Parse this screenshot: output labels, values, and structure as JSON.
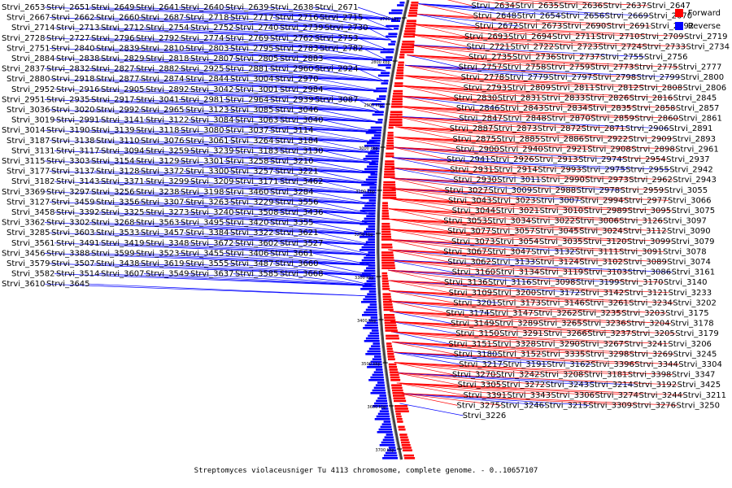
{
  "caption": "Streptomyces violaceusniger Tu 4113 chromosome, complete genome. - 0..10657107",
  "legend": [
    {
      "label": "Forward",
      "color": "#ff0000"
    },
    {
      "label": "Reverse",
      "color": "#0000ff"
    }
  ],
  "colors": {
    "forward": "#ff0000",
    "reverse": "#0000ff",
    "backbone": "#555555"
  },
  "ticks": [
    "2700 kbp",
    "2800 kbp",
    "2900 kbp",
    "3000 kbp",
    "3100 kbp",
    "3200 kbp",
    "3300 kbp",
    "3400 kbp",
    "3500 kbp",
    "3600 kbp",
    "3700 kbp"
  ],
  "genes_reverse": [
    "Strvi_2653",
    "Strvi_2651",
    "Strvi_2649",
    "Strvi_2641",
    "Strvi_2640",
    "Strvi_2639",
    "Strvi_2638",
    "Strvi_2671",
    "Strvi_2667",
    "Strvi_2662",
    "Strvi_2660",
    "Strvi_2687",
    "Strvi_2718",
    "Strvi_2717",
    "Strvi_2716",
    "Strvi_2715",
    "Strvi_2714",
    "Strvi_2713",
    "Strvi_2712",
    "Strvi_2754",
    "Strvi_2752",
    "Strvi_2740",
    "Strvi_2739",
    "Strvi_2730",
    "Strvi_2728",
    "Strvi_2727",
    "Strvi_2796",
    "Strvi_2792",
    "Strvi_2774",
    "Strvi_2769",
    "Strvi_2762",
    "Strvi_2753",
    "Strvi_2751",
    "Strvi_2840",
    "Strvi_2839",
    "Strvi_2810",
    "Strvi_2803",
    "Strvi_2795",
    "Strvi_2783",
    "Strvi_2782",
    "Strvi_2884",
    "Strvi_2838",
    "Strvi_2829",
    "Strvi_2818",
    "Strvi_2807",
    "Strvi_2805",
    "Strvi_2883",
    "Strvi_2837",
    "Strvi_2832",
    "Strvi_2827",
    "Strvi_2882",
    "Strvi_2925",
    "Strvi_2881",
    "Strvi_2960",
    "Strvi_2924",
    "Strvi_2880",
    "Strvi_2918",
    "Strvi_2877",
    "Strvi_2874",
    "Strvi_2844",
    "Strvi_3004",
    "Strvi_2970",
    "Strvi_2952",
    "Strvi_2916",
    "Strvi_2905",
    "Strvi_2892",
    "Strvi_3042",
    "Strvi_3001",
    "Strvi_2984",
    "Strvi_2951",
    "Strvi_2935",
    "Strvi_2917",
    "Strvi_3041",
    "Strvi_2981",
    "Strvi_2964",
    "Strvi_2939",
    "Strvi_3087",
    "Strvi_3036",
    "Strvi_3020",
    "Strvi_2992",
    "Strvi_2965",
    "Strvi_3123",
    "Strvi_3085",
    "Strvi_3046",
    "Strvi_3019",
    "Strvi_2991",
    "Strvi_3141",
    "Strvi_3122",
    "Strvi_3084",
    "Strvi_3063",
    "Strvi_3040",
    "Strvi_3014",
    "Strvi_3190",
    "Strvi_3139",
    "Strvi_3118",
    "Strvi_3080",
    "Strvi_3037",
    "Strvi_3114",
    "Strvi_3187",
    "Strvi_3138",
    "Strvi_3110",
    "Strvi_3076",
    "Strvi_3061",
    "Strvi_3264",
    "Strvi_3184",
    "Strvi_3131",
    "Strvi_3117",
    "Strvi_3094",
    "Strvi_3259",
    "Strvi_3239",
    "Strvi_3183",
    "Strvi_3130",
    "Strvi_3115",
    "Strvi_3303",
    "Strvi_3154",
    "Strvi_3129",
    "Strvi_3301",
    "Strvi_3258",
    "Strvi_3210",
    "Strvi_3177",
    "Strvi_3137",
    "Strvi_3128",
    "Strvi_3372",
    "Strvi_3300",
    "Strvi_3257",
    "Strvi_3221",
    "Strvi_3182",
    "Strvi_3143",
    "Strvi_3371",
    "Strvi_3299",
    "Strvi_3209",
    "Strvi_3171",
    "Strvi_3462",
    "Strvi_3369",
    "Strvi_3297",
    "Strvi_3256",
    "Strvi_3238",
    "Strvi_3198",
    "Strvi_3460",
    "Strvi_3284",
    "Strvi_3127",
    "Strvi_3459",
    "Strvi_3356",
    "Strvi_3307",
    "Strvi_3263",
    "Strvi_3229",
    "Strvi_3556",
    "Strvi_3458",
    "Strvi_3392",
    "Strvi_3325",
    "Strvi_3273",
    "Strvi_3240",
    "Strvi_3508",
    "Strvi_3436",
    "Strvi_3362",
    "Strvi_3302",
    "Strvi_3268",
    "Strvi_3563",
    "Strvi_3495",
    "Strvi_3420",
    "Strvi_3355",
    "Strvi_3285",
    "Strvi_3603",
    "Strvi_3533",
    "Strvi_3457",
    "Strvi_3384",
    "Strvi_3322",
    "Strvi_3621",
    "Strvi_3561",
    "Strvi_3491",
    "Strvi_3419",
    "Strvi_3348",
    "Strvi_3672",
    "Strvi_3602",
    "Strvi_3527",
    "Strvi_3456",
    "Strvi_3388",
    "Strvi_3599",
    "Strvi_3523",
    "Strvi_3455",
    "Strvi_3406",
    "Strvi_3661",
    "Strvi_3579",
    "Strvi_3507",
    "Strvi_3438",
    "Strvi_3619",
    "Strvi_3555",
    "Strvi_3487",
    "Strvi_3660",
    "Strvi_3582",
    "Strvi_3514",
    "Strvi_3607",
    "Strvi_3549",
    "Strvi_3637",
    "Strvi_3585",
    "Strvi_3668",
    "Strvi_3610",
    "Strvi_3645"
  ],
  "genes_mixed_right": [
    {
      "t": "Strvi_2634",
      "s": "f"
    },
    {
      "t": "Strvi_2635",
      "s": "f"
    },
    {
      "t": "Strvi_2636",
      "s": "f"
    },
    {
      "t": "Strvi_2637",
      "s": "f"
    },
    {
      "t": "Strvi_2647",
      "s": "f"
    },
    {
      "t": "Strvi_2648",
      "s": "f"
    },
    {
      "t": "Strvi_2654",
      "s": "r"
    },
    {
      "t": "Strvi_2656",
      "s": "r"
    },
    {
      "t": "Strvi_2669",
      "s": "r"
    },
    {
      "t": "Strvi_2670",
      "s": "r"
    },
    {
      "t": "Strvi_2672",
      "s": "r"
    },
    {
      "t": "Strvi_2673",
      "s": "r"
    },
    {
      "t": "Strvi_2690",
      "s": "f"
    },
    {
      "t": "Strvi_2691",
      "s": "f"
    },
    {
      "t": "Strvi_2692",
      "s": "f"
    },
    {
      "t": "Strvi_2693",
      "s": "f"
    },
    {
      "t": "Strvi_2694",
      "s": "f"
    },
    {
      "t": "Strvi_2711",
      "s": "f"
    },
    {
      "t": "Strvi_2710",
      "s": "f"
    },
    {
      "t": "Strvi_2709",
      "s": "f"
    },
    {
      "t": "Strvi_2719",
      "s": "f"
    },
    {
      "t": "Strvi_2721",
      "s": "f"
    },
    {
      "t": "Strvi_2722",
      "s": "f"
    },
    {
      "t": "Strvi_2723",
      "s": "f"
    },
    {
      "t": "Strvi_2724",
      "s": "f"
    },
    {
      "t": "Strvi_2733",
      "s": "f"
    },
    {
      "t": "Strvi_2734",
      "s": "f"
    },
    {
      "t": "Strvi_2735",
      "s": "f"
    },
    {
      "t": "Strvi_2736",
      "s": "f"
    },
    {
      "t": "Strvi_2737",
      "s": "f"
    },
    {
      "t": "Strvi_2755",
      "s": "f"
    },
    {
      "t": "Strvi_2756",
      "s": "r"
    },
    {
      "t": "Strvi_2757",
      "s": "r"
    },
    {
      "t": "Strvi_2758",
      "s": "f"
    },
    {
      "t": "Strvi_2759",
      "s": "f"
    },
    {
      "t": "Strvi_2773",
      "s": "f"
    },
    {
      "t": "Strvi_2775",
      "s": "f"
    },
    {
      "t": "Strvi_2777",
      "s": "f"
    },
    {
      "t": "Strvi_2778",
      "s": "f"
    },
    {
      "t": "Strvi_2779",
      "s": "f"
    },
    {
      "t": "Strvi_2797",
      "s": "r"
    },
    {
      "t": "Strvi_2798",
      "s": "r"
    },
    {
      "t": "Strvi_2799",
      "s": "f"
    },
    {
      "t": "Strvi_2800",
      "s": "r"
    },
    {
      "t": "Strvi_2793",
      "s": "f"
    },
    {
      "t": "Strvi_2809",
      "s": "f"
    },
    {
      "t": "Strvi_2811",
      "s": "f"
    },
    {
      "t": "Strvi_2812",
      "s": "f"
    },
    {
      "t": "Strvi_2808",
      "s": "f"
    },
    {
      "t": "Strvi_2806",
      "s": "f"
    },
    {
      "t": "Strvi_2830",
      "s": "f"
    },
    {
      "t": "Strvi_2831",
      "s": "f"
    },
    {
      "t": "Strvi_2833",
      "s": "f"
    },
    {
      "t": "Strvi_2826",
      "s": "f"
    },
    {
      "t": "Strvi_2816",
      "s": "f"
    },
    {
      "t": "Strvi_2845",
      "s": "f"
    },
    {
      "t": "Strvi_2846",
      "s": "f"
    },
    {
      "t": "Strvi_2843",
      "s": "r"
    },
    {
      "t": "Strvi_2834",
      "s": "f"
    },
    {
      "t": "Strvi_2835",
      "s": "f"
    },
    {
      "t": "Strvi_2858",
      "s": "f"
    },
    {
      "t": "Strvi_2857",
      "s": "f"
    },
    {
      "t": "Strvi_2847",
      "s": "f"
    },
    {
      "t": "Strvi_2848",
      "s": "f"
    },
    {
      "t": "Strvi_2870",
      "s": "f"
    },
    {
      "t": "Strvi_2859",
      "s": "f"
    },
    {
      "t": "Strvi_2860",
      "s": "f"
    },
    {
      "t": "Strvi_2861",
      "s": "f"
    },
    {
      "t": "Strvi_2887",
      "s": "f"
    },
    {
      "t": "Strvi_2873",
      "s": "f"
    },
    {
      "t": "Strvi_2872",
      "s": "f"
    },
    {
      "t": "Strvi_2871",
      "s": "f"
    },
    {
      "t": "Strvi_2906",
      "s": "f"
    },
    {
      "t": "Strvi_2891",
      "s": "r"
    },
    {
      "t": "Strvi_2875",
      "s": "f"
    },
    {
      "t": "Strvi_2885",
      "s": "f"
    },
    {
      "t": "Strvi_2886",
      "s": "f"
    },
    {
      "t": "Strvi_2922",
      "s": "f"
    },
    {
      "t": "Strvi_2909",
      "s": "f"
    },
    {
      "t": "Strvi_2893",
      "s": "f"
    },
    {
      "t": "Strvi_2900",
      "s": "f"
    },
    {
      "t": "Strvi_2940",
      "s": "f"
    },
    {
      "t": "Strvi_2921",
      "s": "f"
    },
    {
      "t": "Strvi_2908",
      "s": "f"
    },
    {
      "t": "Strvi_2898",
      "s": "f"
    },
    {
      "t": "Strvi_2961",
      "s": "f"
    },
    {
      "t": "Strvi_2941",
      "s": "f"
    },
    {
      "t": "Strvi_2926",
      "s": "r"
    },
    {
      "t": "Strvi_2913",
      "s": "f"
    },
    {
      "t": "Strvi_2974",
      "s": "f"
    },
    {
      "t": "Strvi_2954",
      "s": "r"
    },
    {
      "t": "Strvi_2937",
      "s": "f"
    },
    {
      "t": "Strvi_2931",
      "s": "r"
    },
    {
      "t": "Strvi_2914",
      "s": "f"
    },
    {
      "t": "Strvi_2993",
      "s": "f"
    },
    {
      "t": "Strvi_2975",
      "s": "f"
    },
    {
      "t": "Strvi_2955",
      "s": "r"
    },
    {
      "t": "Strvi_2942",
      "s": "r"
    },
    {
      "t": "Strvi_2930",
      "s": "r"
    },
    {
      "t": "Strvi_3011",
      "s": "f"
    },
    {
      "t": "Strvi_2990",
      "s": "r"
    },
    {
      "t": "Strvi_2973",
      "s": "f"
    },
    {
      "t": "Strvi_2962",
      "s": "f"
    },
    {
      "t": "Strvi_2943",
      "s": "f"
    },
    {
      "t": "Strvi_3027",
      "s": "f"
    },
    {
      "t": "Strvi_3009",
      "s": "f"
    },
    {
      "t": "Strvi_2988",
      "s": "r"
    },
    {
      "t": "Strvi_2978",
      "s": "f"
    },
    {
      "t": "Strvi_2959",
      "s": "r"
    },
    {
      "t": "Strvi_3055",
      "s": "f"
    },
    {
      "t": "Strvi_3043",
      "s": "f"
    },
    {
      "t": "Strvi_3023",
      "s": "f"
    },
    {
      "t": "Strvi_3007",
      "s": "f"
    },
    {
      "t": "Strvi_2994",
      "s": "r"
    },
    {
      "t": "Strvi_2977",
      "s": "f"
    },
    {
      "t": "Strvi_3066",
      "s": "f"
    },
    {
      "t": "Strvi_3044",
      "s": "f"
    },
    {
      "t": "Strvi_3021",
      "s": "f"
    },
    {
      "t": "Strvi_3010",
      "s": "f"
    },
    {
      "t": "Strvi_2989",
      "s": "f"
    },
    {
      "t": "Strvi_3095",
      "s": "f"
    },
    {
      "t": "Strvi_3075",
      "s": "f"
    },
    {
      "t": "Strvi_3053",
      "s": "f"
    },
    {
      "t": "Strvi_3034",
      "s": "f"
    },
    {
      "t": "Strvi_3022",
      "s": "f"
    },
    {
      "t": "Strvi_3006",
      "s": "f"
    },
    {
      "t": "Strvi_3126",
      "s": "f"
    },
    {
      "t": "Strvi_3097",
      "s": "f"
    },
    {
      "t": "Strvi_3077",
      "s": "f"
    },
    {
      "t": "Strvi_3057",
      "s": "f"
    },
    {
      "t": "Strvi_3045",
      "s": "f"
    },
    {
      "t": "Strvi_3024",
      "s": "f"
    },
    {
      "t": "Strvi_3112",
      "s": "f"
    },
    {
      "t": "Strvi_3090",
      "s": "f"
    },
    {
      "t": "Strvi_3073",
      "s": "f"
    },
    {
      "t": "Strvi_3054",
      "s": "f"
    },
    {
      "t": "Strvi_3035",
      "s": "f"
    },
    {
      "t": "Strvi_3120",
      "s": "f"
    },
    {
      "t": "Strvi_3099",
      "s": "f"
    },
    {
      "t": "Strvi_3079",
      "s": "f"
    },
    {
      "t": "Strvi_3067",
      "s": "f"
    },
    {
      "t": "Strvi_3047",
      "s": "f"
    },
    {
      "t": "Strvi_3132",
      "s": "f"
    },
    {
      "t": "Strvi_3111",
      "s": "r"
    },
    {
      "t": "Strvi_3091",
      "s": "f"
    },
    {
      "t": "Strvi_3078",
      "s": "f"
    },
    {
      "t": "Strvi_3062",
      "s": "f"
    },
    {
      "t": "Strvi_3133",
      "s": "f"
    },
    {
      "t": "Strvi_3124",
      "s": "r"
    },
    {
      "t": "Strvi_3102",
      "s": "f"
    },
    {
      "t": "Strvi_3089",
      "s": "f"
    },
    {
      "t": "Strvi_3074",
      "s": "f"
    },
    {
      "t": "Strvi_3160",
      "s": "r"
    },
    {
      "t": "Strvi_3134",
      "s": "f"
    },
    {
      "t": "Strvi_3119",
      "s": "f"
    },
    {
      "t": "Strvi_3103",
      "s": "f"
    },
    {
      "t": "Strvi_3086",
      "s": "f"
    },
    {
      "t": "Strvi_3161",
      "s": "r"
    },
    {
      "t": "Strvi_3136",
      "s": "f"
    },
    {
      "t": "Strvi_3116",
      "s": "f"
    },
    {
      "t": "Strvi_3098",
      "s": "r"
    },
    {
      "t": "Strvi_3199",
      "s": "f"
    },
    {
      "t": "Strvi_3170",
      "s": "r"
    },
    {
      "t": "Strvi_3140",
      "s": "f"
    },
    {
      "t": "Strvi_3109",
      "s": "f"
    },
    {
      "t": "Strvi_3200",
      "s": "f"
    },
    {
      "t": "Strvi_3172",
      "s": "f"
    },
    {
      "t": "Strvi_3142",
      "s": "r"
    },
    {
      "t": "Strvi_3121",
      "s": "f"
    },
    {
      "t": "Strvi_3233",
      "s": "f"
    },
    {
      "t": "Strvi_3201",
      "s": "f"
    },
    {
      "t": "Strvi_3173",
      "s": "r"
    },
    {
      "t": "Strvi_3146",
      "s": "f"
    },
    {
      "t": "Strvi_3261",
      "s": "f"
    },
    {
      "t": "Strvi_3234",
      "s": "f"
    },
    {
      "t": "Strvi_3202",
      "s": "f"
    },
    {
      "t": "Strvi_3174",
      "s": "f"
    },
    {
      "t": "Strvi_3147",
      "s": "r"
    },
    {
      "t": "Strvi_3262",
      "s": "f"
    },
    {
      "t": "Strvi_3235",
      "s": "f"
    },
    {
      "t": "Strvi_3203",
      "s": "f"
    },
    {
      "t": "Strvi_3175",
      "s": "f"
    },
    {
      "t": "Strvi_3149",
      "s": "r"
    },
    {
      "t": "Strvi_3289",
      "s": "f"
    },
    {
      "t": "Strvi_3265",
      "s": "f"
    },
    {
      "t": "Strvi_3236",
      "s": "f"
    },
    {
      "t": "Strvi_3204",
      "s": "f"
    },
    {
      "t": "Strvi_3178",
      "s": "f"
    },
    {
      "t": "Strvi_3150",
      "s": "r"
    },
    {
      "t": "Strvi_3291",
      "s": "f"
    },
    {
      "t": "Strvi_3266",
      "s": "f"
    },
    {
      "t": "Strvi_3237",
      "s": "f"
    },
    {
      "t": "Strvi_3205",
      "s": "f"
    },
    {
      "t": "Strvi_3179",
      "s": "f"
    },
    {
      "t": "Strvi_3151",
      "s": "r"
    },
    {
      "t": "Strvi_3328",
      "s": "f"
    },
    {
      "t": "Strvi_3290",
      "s": "f"
    },
    {
      "t": "Strvi_3267",
      "s": "f"
    },
    {
      "t": "Strvi_3241",
      "s": "f"
    },
    {
      "t": "Strvi_3206",
      "s": "f"
    },
    {
      "t": "Strvi_3180",
      "s": "f"
    },
    {
      "t": "Strvi_3152",
      "s": "r"
    },
    {
      "t": "Strvi_3335",
      "s": "f"
    },
    {
      "t": "Strvi_3298",
      "s": "f"
    },
    {
      "t": "Strvi_3269",
      "s": "f"
    },
    {
      "t": "Strvi_3245",
      "s": "f"
    },
    {
      "t": "Strvi_3217",
      "s": "r"
    },
    {
      "t": "Strvi_3191",
      "s": "r"
    },
    {
      "t": "Strvi_3162",
      "s": "r"
    },
    {
      "t": "Strvi_3396",
      "s": "r"
    },
    {
      "t": "Strvi_3344",
      "s": "f"
    },
    {
      "t": "Strvi_3304",
      "s": "f"
    },
    {
      "t": "Strvi_3270",
      "s": "f"
    },
    {
      "t": "Strvi_3242",
      "s": "f"
    },
    {
      "t": "Strvi_3208",
      "s": "f"
    },
    {
      "t": "Strvi_3181",
      "s": "f"
    },
    {
      "t": "Strvi_3398",
      "s": "f"
    },
    {
      "t": "Strvi_3347",
      "s": "f"
    },
    {
      "t": "Strvi_3305",
      "s": "f"
    },
    {
      "t": "Strvi_3272",
      "s": "f"
    },
    {
      "t": "Strvi_3243",
      "s": "f"
    },
    {
      "t": "Strvi_3214",
      "s": "r"
    },
    {
      "t": "Strvi_3192",
      "s": "r"
    },
    {
      "t": "Strvi_3425",
      "s": "f"
    },
    {
      "t": "Strvi_3391",
      "s": "f"
    },
    {
      "t": "Strvi_3343",
      "s": "f"
    },
    {
      "t": "Strvi_3306",
      "s": "f"
    },
    {
      "t": "Strvi_3274",
      "s": "f"
    },
    {
      "t": "Strvi_3244",
      "s": "f"
    },
    {
      "t": "Strvi_3211",
      "s": "f"
    },
    {
      "t": "Strvi_3275",
      "s": "f"
    },
    {
      "t": "Strvi_3246",
      "s": "f"
    },
    {
      "t": "Strvi_3215",
      "s": "r"
    },
    {
      "t": "Strvi_3309",
      "s": "r"
    },
    {
      "t": "Strvi_3276",
      "s": "f"
    },
    {
      "t": "Strvi_3250",
      "s": "f"
    },
    {
      "t": "Strvi_3226",
      "s": "r"
    }
  ]
}
